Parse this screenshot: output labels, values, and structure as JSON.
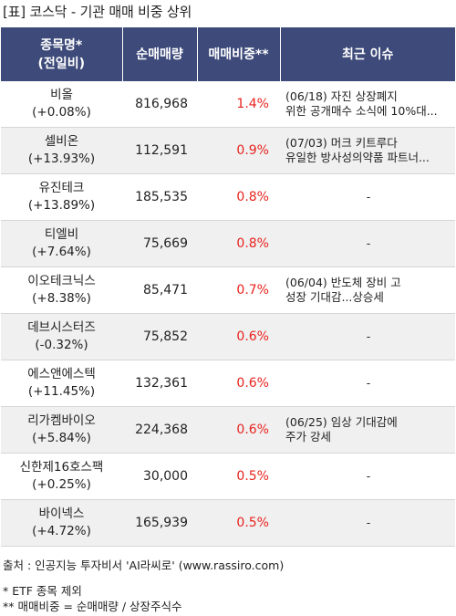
{
  "title": "[표] 코스닥 - 기관 매매 비중 상위",
  "headers": {
    "name_line1": "종목명*",
    "name_line2": "(전일비)",
    "volume": "순매매량",
    "ratio": "매매비중**",
    "issue": "최근 이슈"
  },
  "rows": [
    {
      "name": "비올",
      "change": "(+0.08%)",
      "volume": "816,968",
      "ratio": "1.4%",
      "issue_line1": "(06/18) 자진 상장폐지",
      "issue_line2": "위한 공개매수 소식에 10%대..."
    },
    {
      "name": "셀비온",
      "change": "(+13.93%)",
      "volume": "112,591",
      "ratio": "0.9%",
      "issue_line1": "(07/03) 머크 키트루다",
      "issue_line2": "유일한 방사성의약품 파트너..."
    },
    {
      "name": "유진테크",
      "change": "(+13.89%)",
      "volume": "185,535",
      "ratio": "0.8%",
      "issue_line1": "-",
      "issue_line2": ""
    },
    {
      "name": "티엘비",
      "change": "(+7.64%)",
      "volume": "75,669",
      "ratio": "0.8%",
      "issue_line1": "-",
      "issue_line2": ""
    },
    {
      "name": "이오테크닉스",
      "change": "(+8.38%)",
      "volume": "85,471",
      "ratio": "0.7%",
      "issue_line1": "(06/04) 반도체 장비 고",
      "issue_line2": "성장 기대감...상승세"
    },
    {
      "name": "데브시스터즈",
      "change": "(-0.32%)",
      "volume": "75,852",
      "ratio": "0.6%",
      "issue_line1": "-",
      "issue_line2": ""
    },
    {
      "name": "에스앤에스텍",
      "change": "(+11.45%)",
      "volume": "132,361",
      "ratio": "0.6%",
      "issue_line1": "-",
      "issue_line2": ""
    },
    {
      "name": "리가켐바이오",
      "change": "(+5.84%)",
      "volume": "224,368",
      "ratio": "0.6%",
      "issue_line1": "(06/25) 임상 기대감에",
      "issue_line2": "주가 강세"
    },
    {
      "name": "신한제16호스팩",
      "change": "(+0.25%)",
      "volume": "30,000",
      "ratio": "0.5%",
      "issue_line1": "-",
      "issue_line2": ""
    },
    {
      "name": "바이넥스",
      "change": "(+4.72%)",
      "volume": "165,939",
      "ratio": "0.5%",
      "issue_line1": "-",
      "issue_line2": ""
    }
  ],
  "footer": {
    "source": "출처 : 인공지능 투자비서 'AI라씨로' (www.rassiro.com)",
    "note1": "* ETF 종목 제외",
    "note2": "** 매매비중 = 순매매량 / 상장주식수"
  },
  "colors": {
    "header_bg": "#3d4a7a",
    "ratio_text": "#e8231e",
    "alt_row_bg": "#f0f0f0"
  }
}
